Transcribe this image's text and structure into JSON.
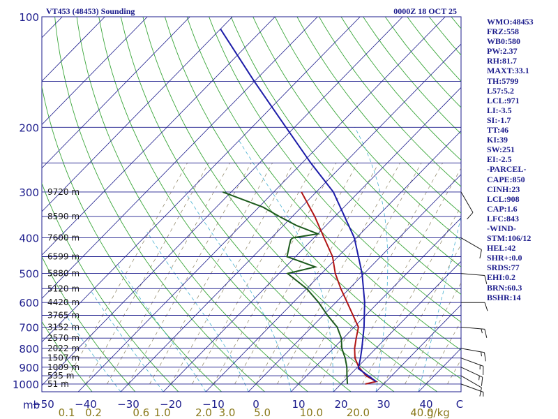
{
  "header": {
    "title_left": "VT453 (48453) Sounding",
    "title_right": "0000Z 18 OCT 25"
  },
  "axis": {
    "pressure_unit": "mb",
    "mixing_ratio_unit": "g/kg"
  },
  "chart_data": {
    "type": "line",
    "title": "VT453 (48453) Sounding",
    "subtitle": "0000Z 18 OCT 25",
    "x_axis": "temperature",
    "y_axis": "pressure (log scale)",
    "ylim": [
      1000,
      100
    ],
    "pressure_ticks": [
      100,
      200,
      300,
      400,
      500,
      600,
      700,
      800,
      900,
      1000
    ],
    "temperature_ticks": [
      -50,
      -40,
      -30,
      -20,
      -10,
      0,
      10,
      20,
      30,
      40
    ],
    "temperature_tick_labels": [
      "−50",
      "−40",
      "−30",
      "−20",
      "−10",
      "0",
      "10",
      "20",
      "30",
      "40"
    ],
    "bottom_right_label": "C",
    "mixing_ratio_ticks": [
      {
        "label": "0.1",
        "x": -44.5
      },
      {
        "label": "0.2",
        "x": -38.2
      },
      {
        "label": "0.6",
        "x": -27.0
      },
      {
        "label": "1.0",
        "x": -22.0
      },
      {
        "label": "2.0",
        "x": -12.3
      },
      {
        "label": "3.0",
        "x": -6.8
      },
      {
        "label": "5.0",
        "x": 1.5
      },
      {
        "label": "10.0",
        "x": 13.0
      },
      {
        "label": "20.0",
        "x": 24.0
      },
      {
        "label": "40.0",
        "x": 39.0
      }
    ],
    "height_levels": [
      {
        "label": "9720 m",
        "p": 300
      },
      {
        "label": "8590 m",
        "p": 350
      },
      {
        "label": "7600 m",
        "p": 400
      },
      {
        "label": "6599 m",
        "p": 450
      },
      {
        "label": "5880 m",
        "p": 500
      },
      {
        "label": "5120 m",
        "p": 550
      },
      {
        "label": "4420 m",
        "p": 600
      },
      {
        "label": "3765 m",
        "p": 650
      },
      {
        "label": "3152 m",
        "p": 700
      },
      {
        "label": "2570 m",
        "p": 750
      },
      {
        "label": "2022 m",
        "p": 800
      },
      {
        "label": "1507 m",
        "p": 850
      },
      {
        "label": "1009 m",
        "p": 900
      },
      {
        "label": "535 m",
        "p": 950
      },
      {
        "label": "51 m",
        "p": 1000
      }
    ],
    "series": [
      {
        "name": "temperature",
        "color": "#b01414",
        "points": [
          [
            1000,
            25.7
          ],
          [
            985,
            27.7
          ],
          [
            950,
            24.0
          ],
          [
            900,
            20.3
          ],
          [
            850,
            17.3
          ],
          [
            800,
            15.0
          ],
          [
            750,
            13.0
          ],
          [
            700,
            11.0
          ],
          [
            650,
            7.0
          ],
          [
            600,
            2.7
          ],
          [
            550,
            -2.0
          ],
          [
            500,
            -6.8
          ],
          [
            450,
            -11.3
          ],
          [
            400,
            -17.6
          ],
          [
            350,
            -24.7
          ],
          [
            300,
            -33.5
          ]
        ]
      },
      {
        "name": "dewpoint",
        "color": "#1c5a1c",
        "points": [
          [
            1000,
            21.5
          ],
          [
            950,
            19.5
          ],
          [
            900,
            17.5
          ],
          [
            850,
            15.0
          ],
          [
            800,
            12.0
          ],
          [
            750,
            9.5
          ],
          [
            700,
            6.0
          ],
          [
            650,
            1.0
          ],
          [
            600,
            -4.0
          ],
          [
            550,
            -10.0
          ],
          [
            500,
            -18.0
          ],
          [
            480,
            -13.0
          ],
          [
            450,
            -22.0
          ],
          [
            420,
            -24.0
          ],
          [
            405,
            -25.0
          ],
          [
            400,
            -25.0
          ],
          [
            390,
            -20.0
          ],
          [
            370,
            -27.0
          ],
          [
            350,
            -33.0
          ],
          [
            330,
            -39.0
          ],
          [
            300,
            -52.0
          ]
        ]
      },
      {
        "name": "parcel",
        "color": "#1c1ca8",
        "points": [
          [
            985,
            27.7
          ],
          [
            950,
            24.5
          ],
          [
            908,
            20.5
          ],
          [
            850,
            18.6
          ],
          [
            800,
            16.7
          ],
          [
            700,
            12.3
          ],
          [
            600,
            6.8
          ],
          [
            500,
            -0.5
          ],
          [
            400,
            -10.5
          ],
          [
            300,
            -26.0
          ],
          [
            250,
            -38.0
          ],
          [
            200,
            -52.0
          ],
          [
            150,
            -70.0
          ],
          [
            108,
            -90.0
          ]
        ]
      }
    ],
    "wind_barbs": [
      {
        "p": 1000,
        "dir": 110,
        "speed_kt": 5
      },
      {
        "p": 950,
        "dir": 120,
        "speed_kt": 10
      },
      {
        "p": 900,
        "dir": 115,
        "speed_kt": 15
      },
      {
        "p": 850,
        "dir": 110,
        "speed_kt": 15
      },
      {
        "p": 800,
        "dir": 100,
        "speed_kt": 15
      },
      {
        "p": 700,
        "dir": 95,
        "speed_kt": 15
      },
      {
        "p": 600,
        "dir": 90,
        "speed_kt": 10
      },
      {
        "p": 500,
        "dir": 95,
        "speed_kt": 10
      },
      {
        "p": 400,
        "dir": 120,
        "speed_kt": 10
      },
      {
        "p": 300,
        "dir": 150,
        "speed_kt": 10
      }
    ]
  },
  "indices": [
    "WMO:48453",
    "FRZ:558",
    "WB0:580",
    "PW:2.37",
    "RH:81.7",
    "MAXT:33.1",
    "TH:5799",
    "L57:5.2",
    "LCL:971",
    "LI:-3.5",
    "SI:-1.7",
    "TT:46",
    "KI:39",
    "SW:251",
    "EI:-2.5",
    "-PARCEL-",
    "CAPE:850",
    "CINH:23",
    "LCL:908",
    "CAP:1.6",
    "LFC:843",
    "-WIND-",
    "STM:106/12",
    "HEL:42",
    "SHR+:0.0",
    "SRDS:77",
    "EHI:0.2",
    "BRN:60.3",
    "BSHR:14"
  ]
}
